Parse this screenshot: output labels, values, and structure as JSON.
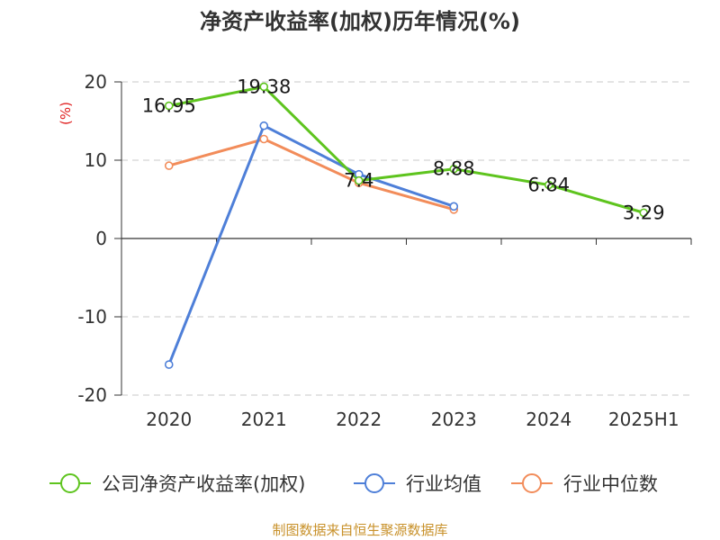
{
  "chart_data": {
    "type": "line",
    "title": "净资产收益率(加权)历年情况(%)",
    "ylabel": "(%)",
    "xlabel": "",
    "categories": [
      "2020",
      "2021",
      "2022",
      "2023",
      "2024",
      "2025H1"
    ],
    "ylim": [
      -20,
      20
    ],
    "yticks": [
      20,
      10,
      0,
      -10,
      -20
    ],
    "grid": true,
    "legend_position": "bottom",
    "series": [
      {
        "name": "公司净资产收益率(加权)",
        "color": "#5ec41e",
        "values": [
          16.95,
          19.38,
          7.4,
          8.88,
          6.84,
          3.29
        ],
        "labels": [
          "16.95",
          "19.38",
          "7.4",
          "8.88",
          "6.84",
          "3.29"
        ]
      },
      {
        "name": "行业均值",
        "color": "#4e7fd8",
        "values": [
          -16.1,
          14.4,
          8.2,
          4.1,
          null,
          null
        ]
      },
      {
        "name": "行业中位数",
        "color": "#f28c5a",
        "values": [
          9.3,
          12.7,
          7.1,
          3.7,
          null,
          null
        ]
      }
    ]
  },
  "source": "制图数据来自恒生聚源数据库"
}
